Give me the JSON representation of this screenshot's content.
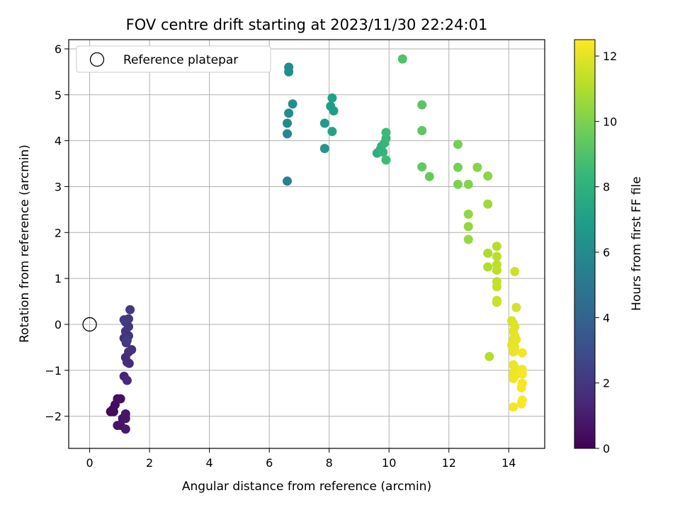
{
  "chart_data": {
    "type": "scatter",
    "title": "FOV centre drift starting at 2023/11/30 22:24:01",
    "xlabel": "Angular distance from reference (arcmin)",
    "ylabel": "Rotation from reference (arcmin)",
    "xlim": [
      -0.7,
      15.2
    ],
    "ylim": [
      -2.7,
      6.2
    ],
    "xticks": [
      0,
      2,
      4,
      6,
      8,
      10,
      12,
      14
    ],
    "yticks": [
      -2,
      -1,
      0,
      1,
      2,
      3,
      4,
      5,
      6
    ],
    "grid": true,
    "legend": {
      "position": "top-left",
      "entries": [
        "Reference platepar"
      ]
    },
    "reference_point": {
      "x": 0,
      "y": 0,
      "label": "Reference platepar"
    },
    "colorbar": {
      "label": "Hours from first FF file",
      "range": [
        0,
        12.5
      ],
      "ticks": [
        0,
        2,
        4,
        6,
        8,
        10,
        12
      ],
      "colormap": "viridis",
      "colormap_stops": [
        "#440154",
        "#482878",
        "#3e4989",
        "#31688e",
        "#26828e",
        "#1f9e89",
        "#35b779",
        "#6ece58",
        "#b5de2b",
        "#fde725"
      ]
    },
    "points": [
      {
        "x": 0.7,
        "y": -1.9,
        "c": 0.2
      },
      {
        "x": 0.78,
        "y": -1.85,
        "c": 0.3
      },
      {
        "x": 0.85,
        "y": -1.75,
        "c": 0.35
      },
      {
        "x": 0.8,
        "y": -1.9,
        "c": 0.4
      },
      {
        "x": 0.93,
        "y": -1.62,
        "c": 0.5
      },
      {
        "x": 1.03,
        "y": -1.62,
        "c": 0.55
      },
      {
        "x": 0.93,
        "y": -2.2,
        "c": 0.6
      },
      {
        "x": 1.03,
        "y": -2.2,
        "c": 0.65
      },
      {
        "x": 1.1,
        "y": -2.05,
        "c": 0.7
      },
      {
        "x": 1.2,
        "y": -1.95,
        "c": 0.75
      },
      {
        "x": 1.2,
        "y": -2.05,
        "c": 0.8
      },
      {
        "x": 1.2,
        "y": -2.28,
        "c": 0.85
      },
      {
        "x": 1.15,
        "y": -1.13,
        "c": 1.3
      },
      {
        "x": 1.25,
        "y": -1.22,
        "c": 1.4
      },
      {
        "x": 1.2,
        "y": -0.72,
        "c": 1.5
      },
      {
        "x": 1.25,
        "y": -0.82,
        "c": 1.55
      },
      {
        "x": 1.32,
        "y": -0.85,
        "c": 1.6
      },
      {
        "x": 1.3,
        "y": -0.6,
        "c": 1.7
      },
      {
        "x": 1.4,
        "y": -0.55,
        "c": 1.75
      },
      {
        "x": 1.15,
        "y": -0.3,
        "c": 1.8
      },
      {
        "x": 1.2,
        "y": -0.15,
        "c": 1.85
      },
      {
        "x": 1.3,
        "y": -0.25,
        "c": 1.9
      },
      {
        "x": 1.22,
        "y": -0.4,
        "c": 1.95
      },
      {
        "x": 1.3,
        "y": -0.05,
        "c": 2.0
      },
      {
        "x": 1.2,
        "y": 0.05,
        "c": 2.05
      },
      {
        "x": 1.3,
        "y": 0.12,
        "c": 2.1
      },
      {
        "x": 1.35,
        "y": 0.32,
        "c": 2.15
      },
      {
        "x": 1.15,
        "y": 0.1,
        "c": 2.2
      },
      {
        "x": 1.25,
        "y": -0.35,
        "c": 2.25
      },
      {
        "x": 6.6,
        "y": 3.12,
        "c": 5.6
      },
      {
        "x": 6.6,
        "y": 4.15,
        "c": 5.8
      },
      {
        "x": 6.6,
        "y": 4.38,
        "c": 6.0
      },
      {
        "x": 6.65,
        "y": 4.6,
        "c": 6.1
      },
      {
        "x": 6.78,
        "y": 4.8,
        "c": 6.3
      },
      {
        "x": 6.65,
        "y": 5.5,
        "c": 6.2
      },
      {
        "x": 6.65,
        "y": 5.6,
        "c": 6.15
      },
      {
        "x": 7.85,
        "y": 3.83,
        "c": 6.6
      },
      {
        "x": 7.85,
        "y": 4.38,
        "c": 6.8
      },
      {
        "x": 8.05,
        "y": 4.75,
        "c": 6.9
      },
      {
        "x": 8.15,
        "y": 4.65,
        "c": 7.0
      },
      {
        "x": 8.1,
        "y": 4.93,
        "c": 7.1
      },
      {
        "x": 8.1,
        "y": 4.2,
        "c": 7.2
      },
      {
        "x": 9.6,
        "y": 3.73,
        "c": 7.9
      },
      {
        "x": 9.7,
        "y": 3.8,
        "c": 8.0
      },
      {
        "x": 9.75,
        "y": 3.88,
        "c": 8.1
      },
      {
        "x": 9.8,
        "y": 3.75,
        "c": 8.2
      },
      {
        "x": 9.85,
        "y": 3.95,
        "c": 8.3
      },
      {
        "x": 9.9,
        "y": 4.05,
        "c": 8.4
      },
      {
        "x": 9.9,
        "y": 4.18,
        "c": 8.5
      },
      {
        "x": 9.9,
        "y": 3.58,
        "c": 8.6
      },
      {
        "x": 10.45,
        "y": 5.78,
        "c": 9.0
      },
      {
        "x": 11.1,
        "y": 4.78,
        "c": 9.2
      },
      {
        "x": 11.1,
        "y": 4.22,
        "c": 9.3
      },
      {
        "x": 11.1,
        "y": 3.43,
        "c": 9.4
      },
      {
        "x": 11.35,
        "y": 3.22,
        "c": 9.5
      },
      {
        "x": 12.3,
        "y": 3.92,
        "c": 9.8
      },
      {
        "x": 12.3,
        "y": 3.42,
        "c": 9.9
      },
      {
        "x": 12.3,
        "y": 3.05,
        "c": 10.0
      },
      {
        "x": 12.65,
        "y": 3.05,
        "c": 10.1
      },
      {
        "x": 12.95,
        "y": 3.42,
        "c": 10.2
      },
      {
        "x": 13.3,
        "y": 3.23,
        "c": 10.3
      },
      {
        "x": 12.65,
        "y": 2.4,
        "c": 10.4
      },
      {
        "x": 12.65,
        "y": 2.13,
        "c": 10.45
      },
      {
        "x": 12.65,
        "y": 1.85,
        "c": 10.5
      },
      {
        "x": 13.3,
        "y": 2.62,
        "c": 10.7
      },
      {
        "x": 13.3,
        "y": 1.55,
        "c": 10.9
      },
      {
        "x": 13.3,
        "y": 1.25,
        "c": 11.0
      },
      {
        "x": 13.35,
        "y": -0.7,
        "c": 11.1
      },
      {
        "x": 13.6,
        "y": 1.7,
        "c": 11.1
      },
      {
        "x": 13.6,
        "y": 1.48,
        "c": 11.2
      },
      {
        "x": 13.6,
        "y": 1.3,
        "c": 11.25
      },
      {
        "x": 13.6,
        "y": 1.18,
        "c": 11.3
      },
      {
        "x": 13.6,
        "y": 0.93,
        "c": 11.35
      },
      {
        "x": 13.6,
        "y": 0.82,
        "c": 11.4
      },
      {
        "x": 13.6,
        "y": 0.52,
        "c": 11.45
      },
      {
        "x": 13.6,
        "y": 0.48,
        "c": 11.5
      },
      {
        "x": 14.2,
        "y": 1.15,
        "c": 11.6
      },
      {
        "x": 14.25,
        "y": 0.37,
        "c": 11.7
      },
      {
        "x": 14.1,
        "y": 0.08,
        "c": 11.8
      },
      {
        "x": 14.15,
        "y": 0.02,
        "c": 11.85
      },
      {
        "x": 14.2,
        "y": -0.05,
        "c": 11.9
      },
      {
        "x": 14.15,
        "y": -0.15,
        "c": 11.95
      },
      {
        "x": 14.2,
        "y": -0.25,
        "c": 12.0
      },
      {
        "x": 14.15,
        "y": -0.33,
        "c": 12.0
      },
      {
        "x": 14.25,
        "y": -0.33,
        "c": 12.05
      },
      {
        "x": 14.1,
        "y": -0.45,
        "c": 12.05
      },
      {
        "x": 14.2,
        "y": -0.5,
        "c": 12.1
      },
      {
        "x": 14.15,
        "y": -0.6,
        "c": 12.1
      },
      {
        "x": 14.2,
        "y": -0.58,
        "c": 12.15
      },
      {
        "x": 14.15,
        "y": -0.88,
        "c": 12.15
      },
      {
        "x": 14.2,
        "y": -0.95,
        "c": 12.2
      },
      {
        "x": 14.15,
        "y": -1.05,
        "c": 12.2
      },
      {
        "x": 14.15,
        "y": -1.18,
        "c": 12.25
      },
      {
        "x": 14.2,
        "y": -1.12,
        "c": 12.25
      },
      {
        "x": 14.15,
        "y": -1.8,
        "c": 12.3
      },
      {
        "x": 14.45,
        "y": -0.62,
        "c": 12.3
      },
      {
        "x": 14.45,
        "y": -0.98,
        "c": 12.35
      },
      {
        "x": 14.45,
        "y": -1.08,
        "c": 12.35
      },
      {
        "x": 14.45,
        "y": -1.28,
        "c": 12.4
      },
      {
        "x": 14.42,
        "y": -1.38,
        "c": 12.4
      },
      {
        "x": 14.45,
        "y": -1.65,
        "c": 12.45
      },
      {
        "x": 14.42,
        "y": -1.73,
        "c": 12.45
      }
    ]
  }
}
